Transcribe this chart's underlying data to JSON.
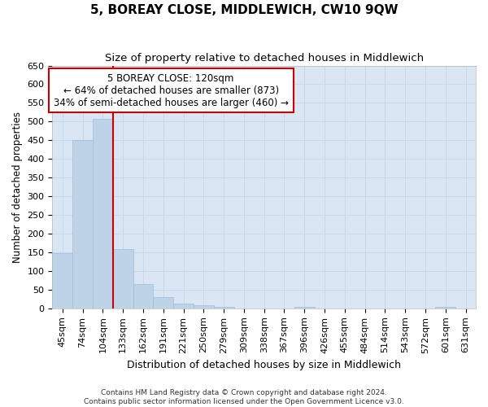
{
  "title": "5, BOREAY CLOSE, MIDDLEWICH, CW10 9QW",
  "subtitle": "Size of property relative to detached houses in Middlewich",
  "xlabel": "Distribution of detached houses by size in Middlewich",
  "ylabel": "Number of detached properties",
  "footer_line1": "Contains HM Land Registry data © Crown copyright and database right 2024.",
  "footer_line2": "Contains public sector information licensed under the Open Government Licence v3.0.",
  "categories": [
    "45sqm",
    "74sqm",
    "104sqm",
    "133sqm",
    "162sqm",
    "191sqm",
    "221sqm",
    "250sqm",
    "279sqm",
    "309sqm",
    "338sqm",
    "367sqm",
    "396sqm",
    "426sqm",
    "455sqm",
    "484sqm",
    "514sqm",
    "543sqm",
    "572sqm",
    "601sqm",
    "631sqm"
  ],
  "values": [
    148,
    450,
    507,
    158,
    65,
    30,
    13,
    8,
    5,
    0,
    0,
    0,
    5,
    0,
    0,
    0,
    0,
    0,
    0,
    5,
    0
  ],
  "bar_color": "#bed3e8",
  "bar_edge_color": "#a0bcd8",
  "grid_color": "#c5d8ec",
  "background_color": "#dae6f3",
  "ylim": [
    0,
    650
  ],
  "yticks": [
    0,
    50,
    100,
    150,
    200,
    250,
    300,
    350,
    400,
    450,
    500,
    550,
    600,
    650
  ],
  "vline_x": 2.5,
  "vline_color": "#cc0000",
  "annotation_title": "5 BOREAY CLOSE: 120sqm",
  "annotation_line1": "← 64% of detached houses are smaller (873)",
  "annotation_line2": "34% of semi-detached houses are larger (460) →",
  "annotation_box_color": "#cc0000",
  "title_fontsize": 11,
  "subtitle_fontsize": 9.5,
  "xlabel_fontsize": 9,
  "ylabel_fontsize": 8.5,
  "tick_fontsize": 8,
  "footer_fontsize": 6.5,
  "annotation_fontsize": 8.5
}
